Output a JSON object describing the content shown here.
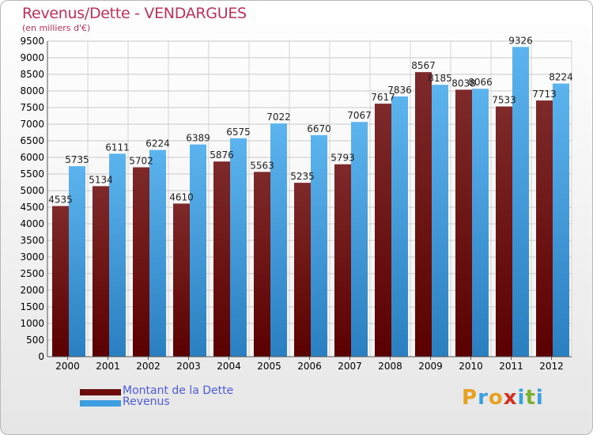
{
  "title": "Revenus/Dette - VENDARGUES",
  "subtitle": "(en milliers d'€)",
  "logo": {
    "letters": [
      "P",
      "r",
      "o",
      "x",
      "i",
      "t",
      "i"
    ],
    "colors": [
      "#e8a020",
      "#3aa0e0",
      "#e8a020",
      "#d03020",
      "#3aa0e0",
      "#7ab030",
      "#3aa0e0"
    ]
  },
  "colors": {
    "dette": "#6b0d0d",
    "revenus": "#3d9ee0",
    "title": "#c0305a"
  },
  "chart_data": {
    "type": "bar",
    "categories": [
      "2000",
      "2001",
      "2002",
      "2003",
      "2004",
      "2005",
      "2006",
      "2007",
      "2008",
      "2009",
      "2010",
      "2011",
      "2012"
    ],
    "series": [
      {
        "name": "Montant de la Dette",
        "values": [
          4535,
          5134,
          5702,
          4610,
          5876,
          5563,
          5235,
          5793,
          7617,
          8567,
          8038,
          7533,
          7713
        ],
        "labels": [
          "4535",
          "5134",
          "5702",
          "4610",
          "5876",
          "5563",
          "5235",
          "5793",
          "7617",
          "8567",
          "8038",
          "7533",
          "7713"
        ]
      },
      {
        "name": "Revenus",
        "values": [
          5735,
          6111,
          6224,
          6389,
          6575,
          7022,
          6670,
          7067,
          7836,
          8185,
          8066,
          9326,
          8224
        ],
        "labels": [
          "5735",
          "6111",
          "6224",
          "6389",
          "6575",
          "7022",
          "6670",
          "7067",
          "7836",
          "8185",
          "8066",
          "9326",
          "8224"
        ]
      }
    ],
    "ylim": [
      0,
      9500
    ],
    "yticks": [
      "0",
      "500",
      "1000",
      "1500",
      "2000",
      "2500",
      "3000",
      "3500",
      "4000",
      "4500",
      "5000",
      "5500",
      "6000",
      "6500",
      "7000",
      "7500",
      "8000",
      "8500",
      "9000",
      "9500"
    ],
    "grid": true,
    "legend": "bottom-left"
  }
}
